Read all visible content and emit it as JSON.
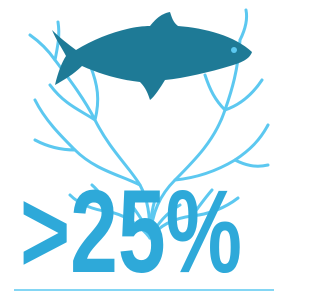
{
  "stat": ">25%"
}
